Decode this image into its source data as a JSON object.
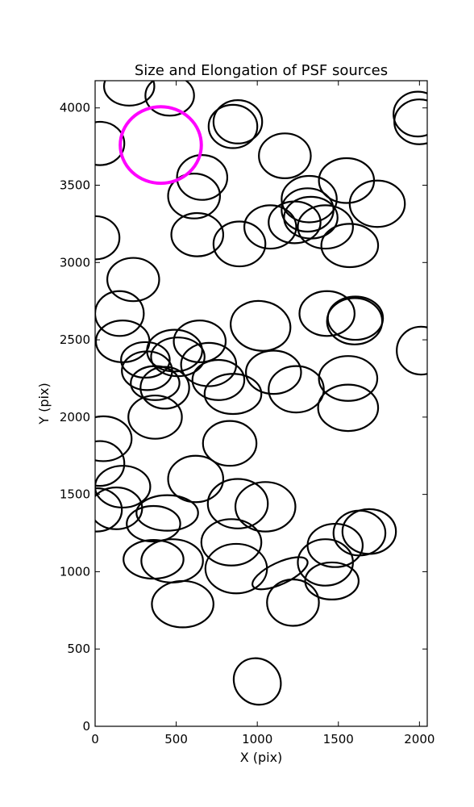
{
  "chart_data": {
    "type": "scatter",
    "title": "Size and Elongation of PSF sources",
    "xlabel": "X (pix)",
    "ylabel": "Y (pix)",
    "xlim": [
      0,
      2048
    ],
    "ylim": [
      0,
      4176
    ],
    "x_ticks": [
      0,
      500,
      1000,
      1500,
      2000
    ],
    "y_ticks": [
      0,
      500,
      1000,
      1500,
      2000,
      2500,
      3000,
      3500,
      4000
    ],
    "grid": false,
    "legend": "none",
    "colors": {
      "sources": "#000000",
      "highlight": "#ff00ff",
      "axes": "#000000"
    },
    "highlight": {
      "x": 405,
      "y": 3760,
      "width": 500,
      "height": 495,
      "angle": 0
    },
    "sources": [
      {
        "x": 1000,
        "y": 290,
        "width": 300,
        "height": 290,
        "angle": -40
      },
      {
        "x": 360,
        "y": 1310,
        "width": 330,
        "height": 230,
        "angle": 0
      },
      {
        "x": 445,
        "y": 1380,
        "width": 380,
        "height": 230,
        "angle": 0
      },
      {
        "x": 360,
        "y": 1080,
        "width": 370,
        "height": 250,
        "angle": 0
      },
      {
        "x": 475,
        "y": 1070,
        "width": 380,
        "height": 280,
        "angle": 0
      },
      {
        "x": 540,
        "y": 790,
        "width": 380,
        "height": 300,
        "angle": 0
      },
      {
        "x": 840,
        "y": 1190,
        "width": 370,
        "height": 300,
        "angle": 0
      },
      {
        "x": 870,
        "y": 1020,
        "width": 380,
        "height": 320,
        "angle": 0
      },
      {
        "x": 1140,
        "y": 990,
        "width": 370,
        "height": 140,
        "angle": 25
      },
      {
        "x": 1220,
        "y": 800,
        "width": 320,
        "height": 300,
        "angle": 0
      },
      {
        "x": 1420,
        "y": 1060,
        "width": 340,
        "height": 300,
        "angle": 0
      },
      {
        "x": 1460,
        "y": 940,
        "width": 330,
        "height": 240,
        "angle": 0
      },
      {
        "x": 1480,
        "y": 1170,
        "width": 340,
        "height": 280,
        "angle": 0
      },
      {
        "x": 1630,
        "y": 1250,
        "width": 320,
        "height": 290,
        "angle": 0
      },
      {
        "x": 1690,
        "y": 1260,
        "width": 330,
        "height": 290,
        "angle": 0
      },
      {
        "x": 10,
        "y": 1400,
        "width": 310,
        "height": 280,
        "angle": 0
      },
      {
        "x": 130,
        "y": 1410,
        "width": 320,
        "height": 270,
        "angle": 0
      },
      {
        "x": 170,
        "y": 1550,
        "width": 340,
        "height": 270,
        "angle": 0
      },
      {
        "x": 30,
        "y": 1700,
        "width": 300,
        "height": 290,
        "angle": 0
      },
      {
        "x": 50,
        "y": 1860,
        "width": 350,
        "height": 290,
        "angle": 0
      },
      {
        "x": 620,
        "y": 1600,
        "width": 340,
        "height": 300,
        "angle": 0
      },
      {
        "x": 880,
        "y": 1440,
        "width": 370,
        "height": 320,
        "angle": 0
      },
      {
        "x": 1050,
        "y": 1420,
        "width": 370,
        "height": 320,
        "angle": 0
      },
      {
        "x": 830,
        "y": 1830,
        "width": 330,
        "height": 290,
        "angle": 0
      },
      {
        "x": 370,
        "y": 2000,
        "width": 330,
        "height": 280,
        "angle": 0
      },
      {
        "x": 430,
        "y": 2190,
        "width": 300,
        "height": 270,
        "angle": 0
      },
      {
        "x": 370,
        "y": 2220,
        "width": 300,
        "height": 220,
        "angle": 0
      },
      {
        "x": 320,
        "y": 2300,
        "width": 310,
        "height": 250,
        "angle": 0
      },
      {
        "x": 310,
        "y": 2370,
        "width": 300,
        "height": 230,
        "angle": 0
      },
      {
        "x": 170,
        "y": 2490,
        "width": 330,
        "height": 270,
        "angle": 0
      },
      {
        "x": 490,
        "y": 2430,
        "width": 340,
        "height": 270,
        "angle": 0
      },
      {
        "x": 510,
        "y": 2390,
        "width": 330,
        "height": 250,
        "angle": 0
      },
      {
        "x": 645,
        "y": 2490,
        "width": 320,
        "height": 270,
        "angle": 0
      },
      {
        "x": 700,
        "y": 2340,
        "width": 340,
        "height": 280,
        "angle": 0
      },
      {
        "x": 760,
        "y": 2240,
        "width": 320,
        "height": 260,
        "angle": 0
      },
      {
        "x": 850,
        "y": 2150,
        "width": 350,
        "height": 260,
        "angle": 0
      },
      {
        "x": 1100,
        "y": 2290,
        "width": 340,
        "height": 280,
        "angle": 0
      },
      {
        "x": 1240,
        "y": 2180,
        "width": 340,
        "height": 300,
        "angle": 0
      },
      {
        "x": 1560,
        "y": 2250,
        "width": 360,
        "height": 290,
        "angle": 0
      },
      {
        "x": 1560,
        "y": 2060,
        "width": 370,
        "height": 300,
        "angle": 0
      },
      {
        "x": 1020,
        "y": 2590,
        "width": 370,
        "height": 320,
        "angle": -10
      },
      {
        "x": 1430,
        "y": 2670,
        "width": 340,
        "height": 290,
        "angle": 0
      },
      {
        "x": 1600,
        "y": 2620,
        "width": 340,
        "height": 300,
        "angle": 0
      },
      {
        "x": 1605,
        "y": 2640,
        "width": 340,
        "height": 280,
        "angle": 0
      },
      {
        "x": 2010,
        "y": 2430,
        "width": 300,
        "height": 310,
        "angle": 0
      },
      {
        "x": 150,
        "y": 2670,
        "width": 300,
        "height": 290,
        "angle": 0
      },
      {
        "x": 235,
        "y": 2890,
        "width": 320,
        "height": 280,
        "angle": 0
      },
      {
        "x": 0,
        "y": 3160,
        "width": 300,
        "height": 280,
        "angle": 0
      },
      {
        "x": 630,
        "y": 3180,
        "width": 320,
        "height": 280,
        "angle": 0
      },
      {
        "x": 890,
        "y": 3120,
        "width": 320,
        "height": 290,
        "angle": 0
      },
      {
        "x": 1080,
        "y": 3230,
        "width": 320,
        "height": 280,
        "angle": 0
      },
      {
        "x": 1230,
        "y": 3260,
        "width": 320,
        "height": 270,
        "angle": 0
      },
      {
        "x": 1330,
        "y": 3290,
        "width": 330,
        "height": 270,
        "angle": 0
      },
      {
        "x": 1310,
        "y": 3340,
        "width": 320,
        "height": 280,
        "angle": 0
      },
      {
        "x": 1320,
        "y": 3410,
        "width": 340,
        "height": 300,
        "angle": 0
      },
      {
        "x": 1420,
        "y": 3230,
        "width": 340,
        "height": 280,
        "angle": 0
      },
      {
        "x": 1570,
        "y": 3110,
        "width": 350,
        "height": 280,
        "angle": 0
      },
      {
        "x": 1740,
        "y": 3380,
        "width": 340,
        "height": 300,
        "angle": 0
      },
      {
        "x": 1550,
        "y": 3530,
        "width": 340,
        "height": 290,
        "angle": 0
      },
      {
        "x": 610,
        "y": 3430,
        "width": 320,
        "height": 290,
        "angle": 0
      },
      {
        "x": 660,
        "y": 3550,
        "width": 310,
        "height": 290,
        "angle": 0
      },
      {
        "x": 1170,
        "y": 3690,
        "width": 320,
        "height": 290,
        "angle": 0
      },
      {
        "x": 850,
        "y": 3880,
        "width": 300,
        "height": 280,
        "angle": 0
      },
      {
        "x": 880,
        "y": 3910,
        "width": 300,
        "height": 280,
        "angle": 0
      },
      {
        "x": 210,
        "y": 4140,
        "width": 310,
        "height": 250,
        "angle": 0
      },
      {
        "x": 460,
        "y": 4080,
        "width": 300,
        "height": 260,
        "angle": 0
      },
      {
        "x": 30,
        "y": 3770,
        "width": 300,
        "height": 280,
        "angle": 0
      },
      {
        "x": 1990,
        "y": 3960,
        "width": 300,
        "height": 290,
        "angle": 0
      },
      {
        "x": 2000,
        "y": 3910,
        "width": 310,
        "height": 290,
        "angle": 0
      }
    ]
  }
}
